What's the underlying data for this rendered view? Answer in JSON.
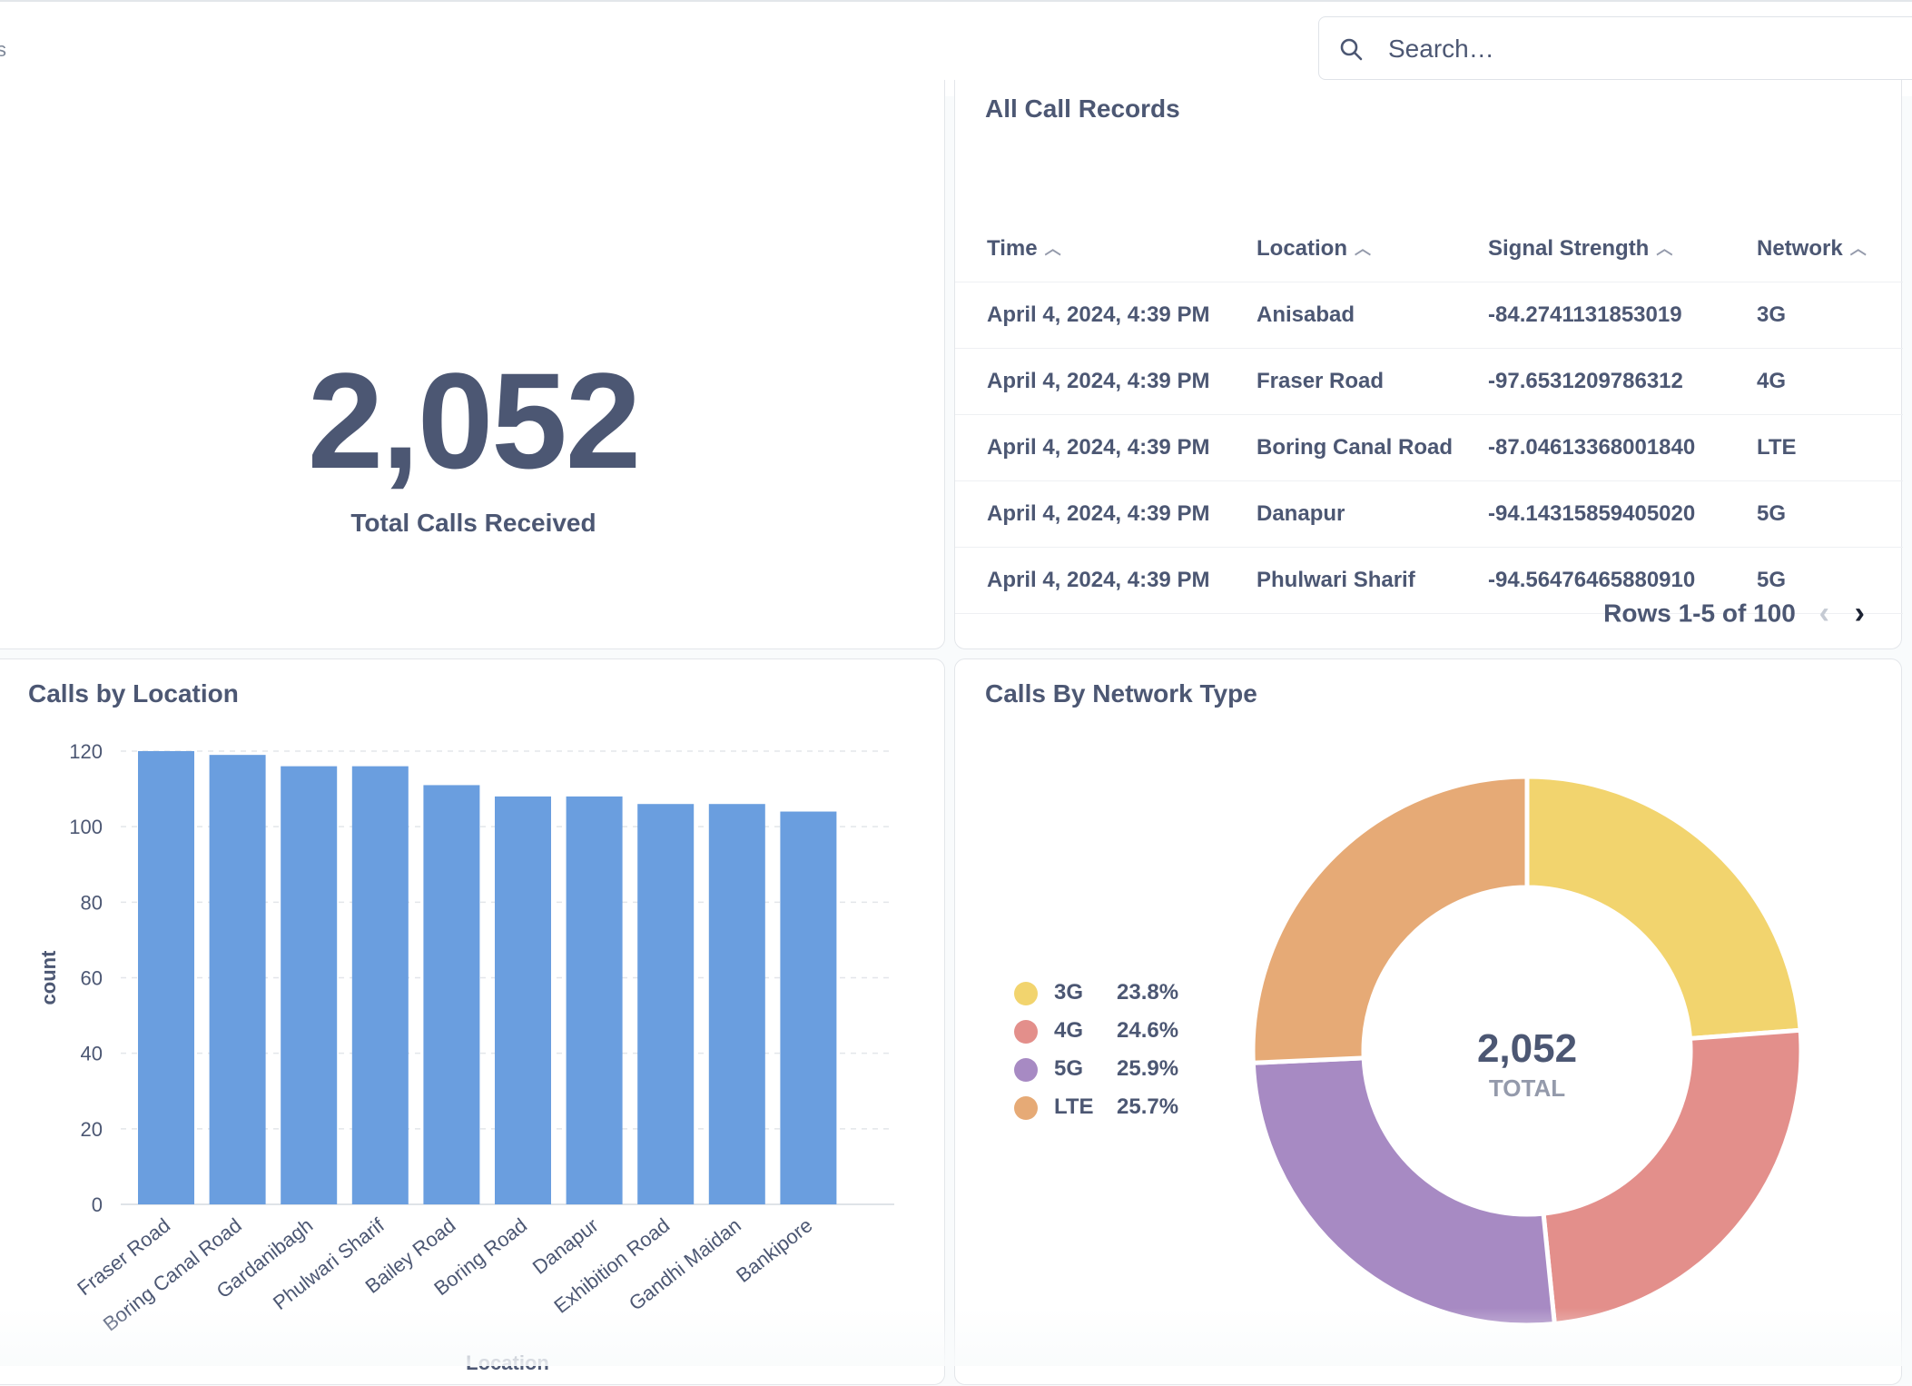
{
  "topbar": {
    "crumb_fragment": "s",
    "search": {
      "placeholder": "Search…"
    }
  },
  "scalar_card": {
    "value": "2,052",
    "label": "Total Calls Received"
  },
  "table_card": {
    "title": "All Call Records",
    "columns": [
      "Time",
      "Location",
      "Signal Strength",
      "Network"
    ],
    "rows": [
      [
        "April 4, 2024, 4:39 PM",
        "Anisabad",
        "-84.2741131853019",
        "3G"
      ],
      [
        "April 4, 2024, 4:39 PM",
        "Fraser Road",
        "-97.6531209786312",
        "4G"
      ],
      [
        "April 4, 2024, 4:39 PM",
        "Boring Canal Road",
        "-87.04613368001840",
        "LTE"
      ],
      [
        "April 4, 2024, 4:39 PM",
        "Danapur",
        "-94.14315859405020",
        "5G"
      ],
      [
        "April 4, 2024, 4:39 PM",
        "Phulwari Sharif",
        "-94.56476465880910",
        "5G"
      ]
    ],
    "pagination": "Rows 1-5 of 100"
  },
  "bar_card": {
    "title": "Calls by Location"
  },
  "donut_card": {
    "title": "Calls By Network Type",
    "center_value": "2,052",
    "center_label": "TOTAL"
  },
  "chart_data": [
    {
      "type": "bar",
      "title": "Calls by Location",
      "categories": [
        "Fraser Road",
        "Boring Canal Road",
        "Gardanibagh",
        "Phulwari Sharif",
        "Bailey Road",
        "Boring Road",
        "Danapur",
        "Exhibition Road",
        "Gandhi Maidan",
        "Bankipore"
      ],
      "values": [
        120,
        119,
        116,
        116,
        111,
        108,
        108,
        106,
        106,
        104
      ],
      "xlabel": "Location",
      "ylabel": "count",
      "ylim": [
        0,
        120
      ],
      "yticks": [
        0,
        20,
        40,
        60,
        80,
        100,
        120
      ],
      "grid": true,
      "color": "#6a9edf"
    },
    {
      "type": "pie",
      "title": "Calls By Network Type",
      "donut": true,
      "categories": [
        "3G",
        "4G",
        "5G",
        "LTE"
      ],
      "values": [
        23.8,
        24.6,
        25.9,
        25.7
      ],
      "labels": [
        "23.8%",
        "24.6%",
        "25.9%",
        "25.7%"
      ],
      "colors": [
        "#f2d46e",
        "#e38f8b",
        "#a78ac3",
        "#e6aa76"
      ],
      "legend": "left"
    }
  ]
}
